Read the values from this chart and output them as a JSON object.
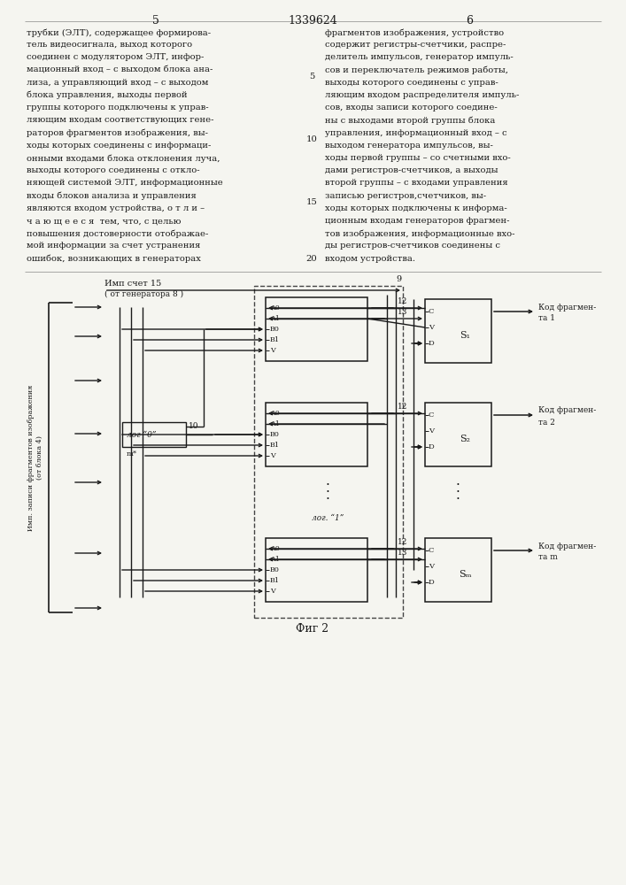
{
  "title": "Фиг 2",
  "page_left": "5",
  "page_center": "1339624",
  "page_right": "6",
  "bg_color": "#f5f5f0",
  "text_color": "#1a1a1a",
  "line_color": "#1a1a1a",
  "fig_width": 7.07,
  "fig_height": 10.0,
  "dpi": 100,
  "left_col_lines": [
    "трубки (ЭЛТ), содержащее формирова-",
    "тель видеосигнала, выход которого",
    "соединен с модулятором ЭЛТ, инфор-",
    "мационный вход – с выходом блока ана-",
    "лиза, а управляющий вход – с выходом",
    "блока управления, выходы первой",
    "группы которого подключены к управ-",
    "ляющим входам соответствующих гене-",
    "раторов фрагментов изображения, вы-",
    "ходы которых соединены с информаци-",
    "онными входами блока отклонения луча,",
    "выходы которого соединены с откло-",
    "няющей системой ЭЛТ, информационные",
    "входы блоков анализа и управления",
    "являются входом устройства, о т л и –",
    "ч а ю щ е е с я  тем, что, с целью",
    "повышения достоверности отображае-",
    "мой информации за счет устранения",
    "ошибок, возникающих в генераторах"
  ],
  "right_col_lines": [
    "фрагментов изображения, устройство",
    "содержит регистры-счетчики, распре-",
    "делитель импульсов, генератор импуль-",
    "сов и переключатель режимов работы,",
    "выходы которого соединены с управ-",
    "ляющим входом распределителя импуль-",
    "сов, входы записи которого соедине-",
    "ны с выходами второй группы блока",
    "управления, информационный вход – с",
    "выходом генератора импульсов, вы-",
    "ходы первой группы – со счетными вхо-",
    "дами регистров-счетчиков, а выходы",
    "второй группы – с входами управления",
    "записью регистров,счетчиков, вы-",
    "ходы которых подключены к информа-",
    "ционным входам генераторов фрагмен-",
    "тов изображения, информационные вхо-",
    "ды регистров-счетчиков соединены с",
    "входом устройства."
  ]
}
